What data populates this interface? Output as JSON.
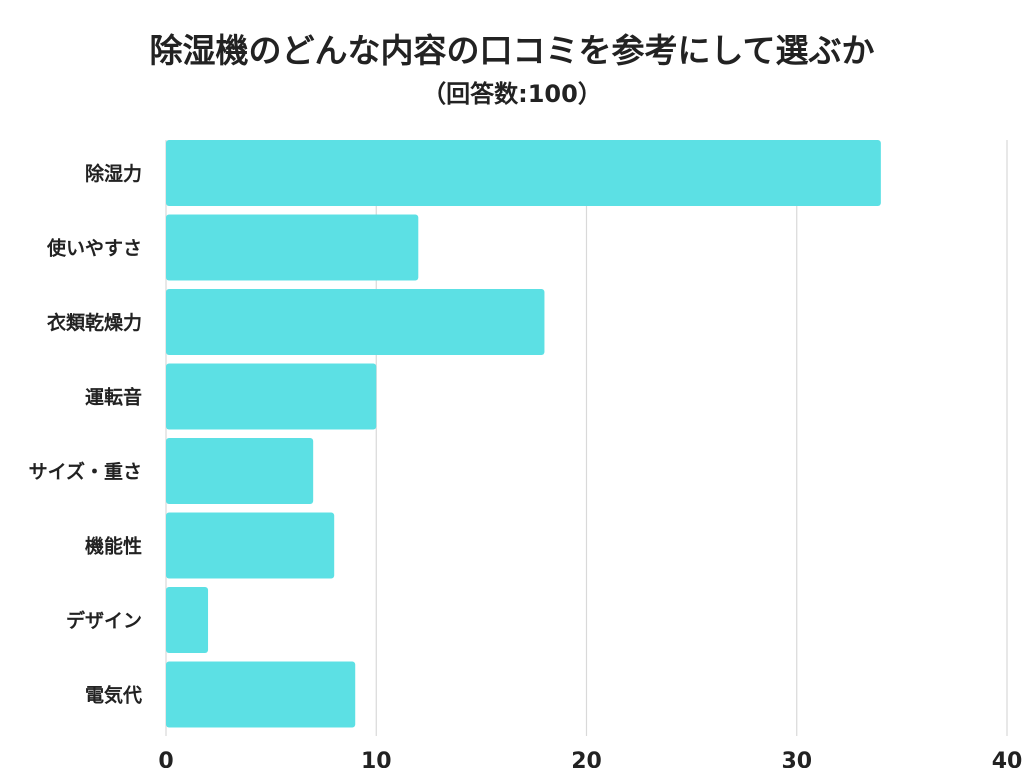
{
  "title": "除湿機のどんな内容の口コミを参考にして選ぶか",
  "subtitle": "（回答数:100）",
  "colors": {
    "bar": "#5ce0e4",
    "grid": "#d9d9d9",
    "text": "#222222"
  },
  "chart_data": {
    "type": "bar",
    "orientation": "horizontal",
    "categories": [
      "除湿力",
      "使いやすさ",
      "衣類乾燥力",
      "運転音",
      "サイズ・重さ",
      "機能性",
      "デザイン",
      "電気代"
    ],
    "values": [
      34,
      12,
      18,
      10,
      7,
      8,
      2,
      9
    ],
    "xlim": [
      0,
      40
    ],
    "xticks": [
      0,
      10,
      20,
      30,
      40
    ],
    "grid": true
  }
}
